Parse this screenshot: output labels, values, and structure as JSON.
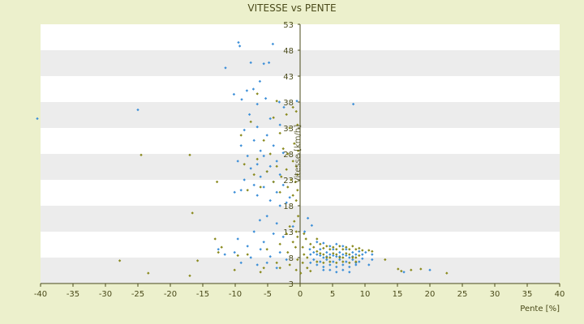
{
  "chart_data": {
    "type": "scatter",
    "title": "VITESSE vs PENTE",
    "xlabel": "Pente [%]",
    "ylabel": "Vitesse [km/h]",
    "xlim": [
      -40,
      40
    ],
    "ylim": [
      3,
      53
    ],
    "xticks": [
      -40,
      -35,
      -30,
      -25,
      -20,
      -15,
      -10,
      -5,
      0,
      5,
      10,
      15,
      20,
      25,
      30,
      35,
      40
    ],
    "yticks": [
      3,
      8,
      13,
      18,
      23,
      28,
      33,
      38,
      43,
      48,
      53
    ],
    "grid": "horizontal bands",
    "legend": "none",
    "colors": {
      "series_a": "#3d8fd8",
      "series_b": "#8a8a1e",
      "band_light": "#ffffff",
      "band_dark": "#ececec",
      "background": "#ecf0cc"
    },
    "series": [
      {
        "color": "#3d8fd8",
        "points": [
          [
            -9.5,
            49.5
          ],
          [
            -9.3,
            48.8
          ],
          [
            -7.6,
            45.6
          ],
          [
            -5.6,
            45.4
          ],
          [
            -4.8,
            45.6
          ],
          [
            -11.5,
            44.6
          ],
          [
            -4.2,
            49.2
          ],
          [
            -6.2,
            42.0
          ],
          [
            -7.2,
            40.5
          ],
          [
            -8.2,
            40.2
          ],
          [
            -10.2,
            39.5
          ],
          [
            -3.2,
            38.0
          ],
          [
            -5.3,
            38.7
          ],
          [
            -6.6,
            37.6
          ],
          [
            -9.0,
            38.5
          ],
          [
            -2.5,
            37.0
          ],
          [
            -25.0,
            36.5
          ],
          [
            -40.5,
            34.8
          ],
          [
            8.2,
            37.6
          ],
          [
            -0.5,
            38.2
          ],
          [
            -7.8,
            35.6
          ],
          [
            -4.6,
            34.8
          ],
          [
            -6.6,
            33.2
          ],
          [
            -8.6,
            32.6
          ],
          [
            -3.1,
            33.6
          ],
          [
            -5.1,
            31.6
          ],
          [
            -7.1,
            30.6
          ],
          [
            -9.1,
            29.6
          ],
          [
            -4.1,
            29.6
          ],
          [
            -6.1,
            28.6
          ],
          [
            -2.6,
            28.2
          ],
          [
            -5.6,
            27.6
          ],
          [
            -3.6,
            26.6
          ],
          [
            -8.1,
            27.6
          ],
          [
            -6.6,
            26.0
          ],
          [
            -4.6,
            25.6
          ],
          [
            -9.6,
            26.6
          ],
          [
            -7.6,
            25.2
          ],
          [
            -5.1,
            24.6
          ],
          [
            -3.1,
            24.0
          ],
          [
            -6.1,
            23.6
          ],
          [
            -8.6,
            23.0
          ],
          [
            -4.1,
            22.6
          ],
          [
            -2.6,
            22.0
          ],
          [
            -7.1,
            22.0
          ],
          [
            -5.6,
            21.6
          ],
          [
            -9.1,
            21.0
          ],
          [
            -3.6,
            20.6
          ],
          [
            -6.6,
            20.0
          ],
          [
            -1.6,
            19.6
          ],
          [
            -4.6,
            19.0
          ],
          [
            -10.1,
            20.6
          ],
          [
            -2.1,
            18.6
          ],
          [
            -3.1,
            18.0
          ],
          [
            -5.1,
            16.0
          ],
          [
            -6.2,
            15.2
          ],
          [
            -3.6,
            14.6
          ],
          [
            -1.1,
            14.0
          ],
          [
            -7.1,
            13.0
          ],
          [
            -4.1,
            12.6
          ],
          [
            1.2,
            15.6
          ],
          [
            1.8,
            14.2
          ],
          [
            0.7,
            13.0
          ],
          [
            -2.6,
            12.0
          ],
          [
            -5.6,
            11.0
          ],
          [
            -9.6,
            11.6
          ],
          [
            -8.1,
            10.2
          ],
          [
            -6.1,
            9.6
          ],
          [
            -3.1,
            9.0
          ],
          [
            -10.1,
            9.0
          ],
          [
            -4.6,
            8.2
          ],
          [
            -7.6,
            8.0
          ],
          [
            -11.6,
            8.6
          ],
          [
            -5.1,
            7.0
          ],
          [
            -2.1,
            7.6
          ],
          [
            -9.1,
            7.0
          ],
          [
            -3.6,
            6.0
          ],
          [
            -6.6,
            6.6
          ],
          [
            -12.6,
            9.6
          ],
          [
            1.5,
            9.6
          ],
          [
            2.1,
            9.0
          ],
          [
            2.6,
            8.6
          ],
          [
            3.1,
            9.6
          ],
          [
            3.6,
            8.0
          ],
          [
            4.1,
            9.0
          ],
          [
            4.6,
            8.6
          ],
          [
            5.1,
            9.6
          ],
          [
            5.6,
            8.2
          ],
          [
            6.1,
            9.0
          ],
          [
            6.6,
            8.6
          ],
          [
            7.1,
            9.6
          ],
          [
            7.6,
            8.0
          ],
          [
            8.1,
            9.0
          ],
          [
            8.6,
            8.6
          ],
          [
            9.1,
            9.2
          ],
          [
            9.6,
            8.6
          ],
          [
            10.1,
            9.0
          ],
          [
            2.1,
            7.6
          ],
          [
            3.1,
            7.2
          ],
          [
            4.1,
            7.6
          ],
          [
            5.1,
            7.2
          ],
          [
            6.1,
            7.6
          ],
          [
            7.1,
            7.2
          ],
          [
            8.1,
            7.6
          ],
          [
            9.1,
            7.2
          ],
          [
            2.6,
            6.6
          ],
          [
            3.6,
            6.2
          ],
          [
            4.6,
            6.6
          ],
          [
            5.6,
            6.2
          ],
          [
            6.6,
            6.6
          ],
          [
            7.6,
            6.2
          ],
          [
            8.6,
            6.6
          ],
          [
            3.1,
            8.4
          ],
          [
            4.1,
            8.2
          ],
          [
            5.1,
            8.4
          ],
          [
            6.1,
            8.2
          ],
          [
            7.1,
            8.4
          ],
          [
            8.1,
            8.2
          ],
          [
            4.6,
            10.2
          ],
          [
            5.6,
            10.6
          ],
          [
            6.6,
            10.2
          ],
          [
            3.6,
            10.8
          ],
          [
            10.6,
            6.6
          ],
          [
            11.1,
            7.6
          ],
          [
            2.6,
            11.0
          ],
          [
            4.6,
            5.6
          ],
          [
            5.6,
            5.2
          ],
          [
            6.6,
            5.6
          ],
          [
            7.6,
            5.2
          ],
          [
            3.6,
            5.6
          ],
          [
            1.6,
            7.0
          ],
          [
            11.1,
            8.6
          ],
          [
            9.6,
            7.8
          ],
          [
            8.6,
            7.0
          ],
          [
            20.0,
            5.6
          ],
          [
            16.0,
            5.2
          ],
          [
            1.6,
            8.6
          ]
        ]
      },
      {
        "color": "#8a8a1e",
        "points": [
          [
            -6.6,
            39.6
          ],
          [
            -3.6,
            38.2
          ],
          [
            -1.1,
            37.0
          ],
          [
            -2.1,
            35.6
          ],
          [
            -0.6,
            36.2
          ],
          [
            -4.1,
            35.0
          ],
          [
            -7.6,
            34.2
          ],
          [
            -1.6,
            33.0
          ],
          [
            -0.4,
            33.6
          ],
          [
            -3.1,
            32.0
          ],
          [
            -9.1,
            31.6
          ],
          [
            -5.6,
            30.6
          ],
          [
            -0.9,
            30.0
          ],
          [
            -2.6,
            29.0
          ],
          [
            -0.3,
            28.6
          ],
          [
            -1.9,
            28.0
          ],
          [
            -4.6,
            28.0
          ],
          [
            -6.6,
            27.0
          ],
          [
            -8.6,
            26.0
          ],
          [
            -1.1,
            26.6
          ],
          [
            -0.6,
            25.6
          ],
          [
            -2.1,
            25.0
          ],
          [
            -3.6,
            25.6
          ],
          [
            -5.1,
            24.6
          ],
          [
            -0.4,
            24.0
          ],
          [
            -7.1,
            24.0
          ],
          [
            -1.4,
            23.0
          ],
          [
            -2.9,
            23.6
          ],
          [
            -4.1,
            22.6
          ],
          [
            -0.7,
            22.6
          ],
          [
            -6.1,
            21.6
          ],
          [
            -1.9,
            21.6
          ],
          [
            -0.4,
            21.0
          ],
          [
            -3.1,
            20.6
          ],
          [
            -8.1,
            21.0
          ],
          [
            -1.1,
            20.0
          ],
          [
            -0.6,
            19.0
          ],
          [
            -24.5,
            27.8
          ],
          [
            -17.0,
            27.8
          ],
          [
            -12.8,
            22.6
          ],
          [
            -16.6,
            16.6
          ],
          [
            -0.3,
            16.0
          ],
          [
            -0.9,
            15.0
          ],
          [
            -1.6,
            14.0
          ],
          [
            -0.6,
            13.0
          ],
          [
            -2.1,
            12.6
          ],
          [
            -13.1,
            11.6
          ],
          [
            -0.4,
            12.0
          ],
          [
            -1.1,
            11.0
          ],
          [
            -3.1,
            10.6
          ],
          [
            -0.7,
            10.0
          ],
          [
            -12.6,
            9.0
          ],
          [
            -5.1,
            9.6
          ],
          [
            -1.9,
            9.0
          ],
          [
            -8.1,
            8.6
          ],
          [
            -27.8,
            7.4
          ],
          [
            -23.4,
            5.0
          ],
          [
            -17.0,
            4.5
          ],
          [
            -15.8,
            7.4
          ],
          [
            -10.1,
            5.6
          ],
          [
            -3.6,
            7.0
          ],
          [
            -5.6,
            6.0
          ],
          [
            -0.4,
            7.6
          ],
          [
            -1.6,
            6.6
          ],
          [
            -0.6,
            5.6
          ],
          [
            -12.1,
            10.0
          ],
          [
            -9.6,
            8.4
          ],
          [
            -6.1,
            5.2
          ],
          [
            -3.1,
            6.0
          ],
          [
            0.6,
            12.6
          ],
          [
            0.9,
            11.6
          ],
          [
            1.6,
            10.6
          ],
          [
            0.4,
            10.0
          ],
          [
            2.6,
            11.6
          ],
          [
            3.1,
            10.6
          ],
          [
            3.6,
            9.8
          ],
          [
            4.1,
            10.2
          ],
          [
            4.6,
            9.6
          ],
          [
            5.1,
            10.0
          ],
          [
            5.6,
            9.6
          ],
          [
            6.1,
            10.2
          ],
          [
            6.6,
            9.6
          ],
          [
            7.1,
            10.0
          ],
          [
            7.6,
            9.6
          ],
          [
            8.1,
            10.2
          ],
          [
            8.6,
            9.6
          ],
          [
            9.1,
            9.8
          ],
          [
            9.6,
            9.4
          ],
          [
            10.6,
            9.4
          ],
          [
            11.1,
            9.2
          ],
          [
            2.1,
            10.0
          ],
          [
            2.6,
            9.2
          ],
          [
            3.1,
            8.8
          ],
          [
            3.6,
            8.6
          ],
          [
            4.1,
            8.0
          ],
          [
            4.6,
            8.0
          ],
          [
            5.1,
            8.8
          ],
          [
            5.6,
            8.6
          ],
          [
            6.1,
            8.0
          ],
          [
            6.6,
            8.0
          ],
          [
            7.1,
            8.8
          ],
          [
            7.6,
            8.6
          ],
          [
            8.1,
            8.0
          ],
          [
            8.6,
            8.0
          ],
          [
            9.1,
            8.4
          ],
          [
            2.6,
            7.2
          ],
          [
            3.6,
            7.0
          ],
          [
            4.6,
            7.2
          ],
          [
            5.6,
            7.0
          ],
          [
            6.6,
            7.2
          ],
          [
            7.6,
            7.0
          ],
          [
            8.6,
            7.2
          ],
          [
            13.1,
            7.6
          ],
          [
            15.6,
            5.4
          ],
          [
            15.1,
            5.8
          ],
          [
            17.1,
            5.6
          ],
          [
            22.6,
            5.0
          ],
          [
            18.6,
            5.8
          ],
          [
            0.6,
            8.6
          ],
          [
            1.1,
            8.0
          ],
          [
            0.4,
            7.0
          ],
          [
            1.1,
            6.0
          ],
          [
            1.6,
            5.4
          ],
          [
            0.1,
            5.0
          ]
        ]
      }
    ]
  }
}
